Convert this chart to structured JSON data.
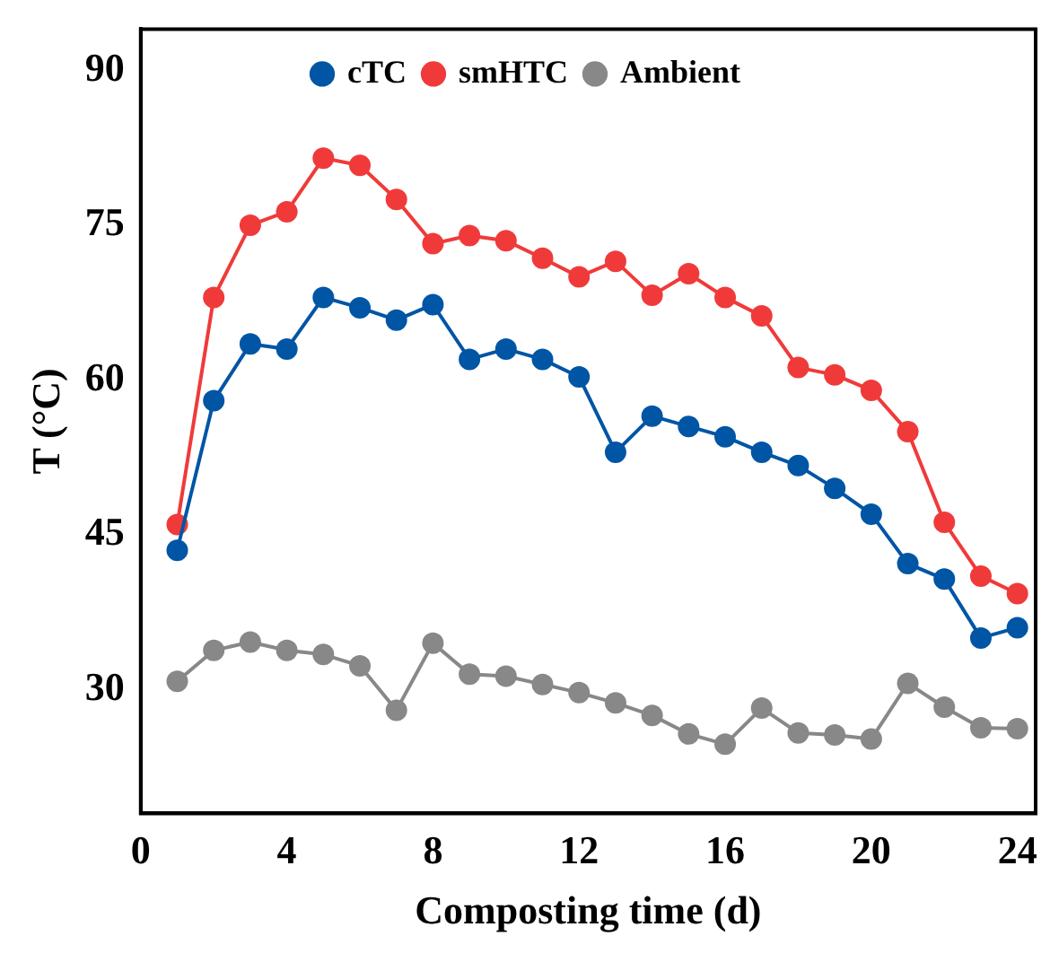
{
  "chart_data": {
    "type": "line",
    "xlabel": "Composting time (d)",
    "ylabel": "T (°C)",
    "x": [
      1,
      2,
      3,
      4,
      5,
      6,
      7,
      8,
      9,
      10,
      11,
      12,
      13,
      14,
      15,
      16,
      17,
      18,
      19,
      20,
      21,
      22,
      23,
      24
    ],
    "series": [
      {
        "name": "cTC",
        "color": "#0055a5",
        "values": [
          43.5,
          58,
          63.5,
          63,
          68,
          67,
          65.8,
          67.3,
          62,
          63,
          62,
          60.3,
          53,
          56.5,
          55.5,
          54.5,
          53,
          51.7,
          49.5,
          47,
          42.2,
          40.7,
          35,
          36
        ]
      },
      {
        "name": "smHTC",
        "color": "#f03a3a",
        "values": [
          46,
          68,
          75,
          76.3,
          81.5,
          80.8,
          77.5,
          73.2,
          74,
          73.5,
          71.8,
          70,
          71.5,
          68.2,
          70.3,
          68,
          66.2,
          61.2,
          60.5,
          59,
          55,
          46.2,
          41,
          39.3
        ]
      },
      {
        "name": "Ambient",
        "color": "#888888",
        "values": [
          30.8,
          33.8,
          34.6,
          33.8,
          33.4,
          32.3,
          28,
          34.5,
          31.5,
          31.3,
          30.5,
          29.7,
          28.7,
          27.5,
          25.7,
          24.7,
          28.2,
          25.8,
          25.6,
          25.2,
          30.6,
          28.3,
          26.3,
          26.2
        ]
      }
    ],
    "xlim": [
      0,
      24.5
    ],
    "xticks": [
      0,
      4,
      8,
      12,
      16,
      20,
      24
    ],
    "ylim": [
      18,
      94
    ],
    "yticks": [
      30,
      45,
      60,
      75,
      90
    ],
    "grid": false,
    "legend": "top",
    "marker": "circle",
    "line_style": "solid"
  }
}
